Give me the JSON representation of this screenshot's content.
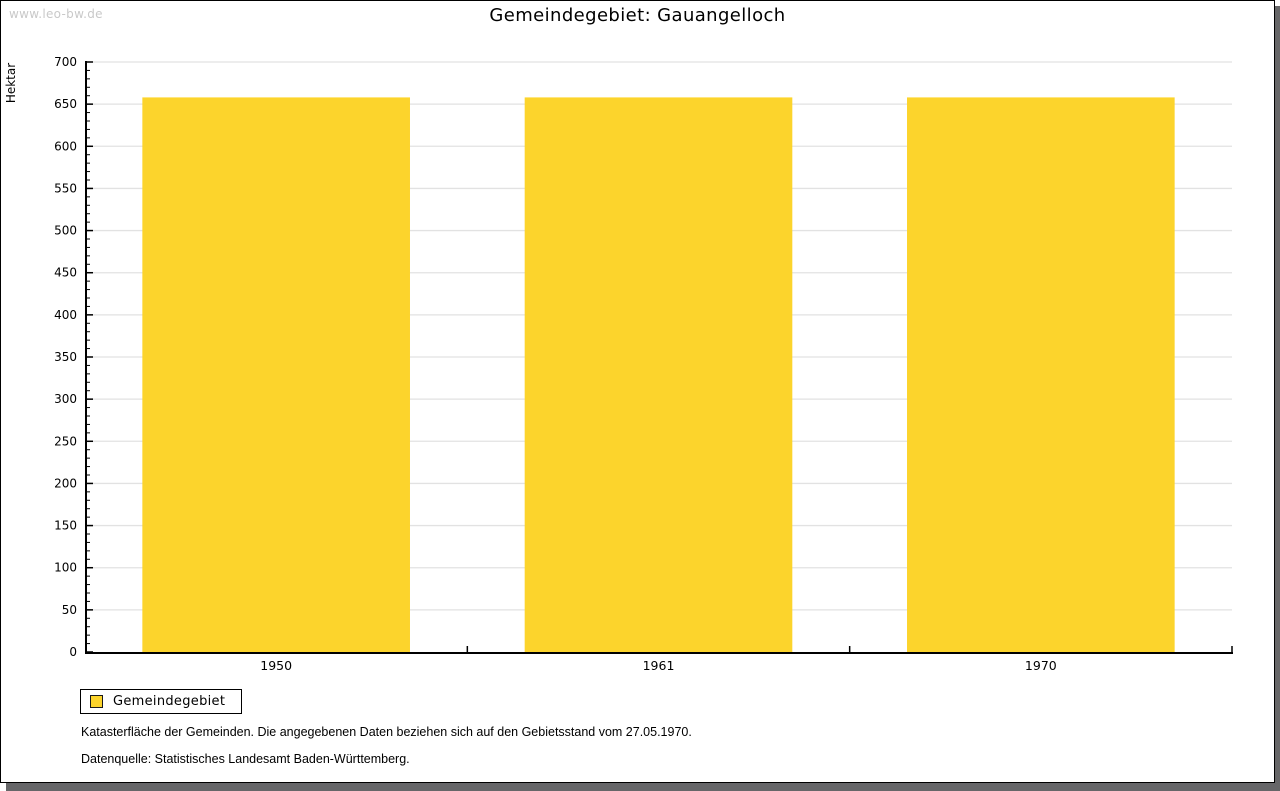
{
  "watermark": {
    "text": "www.leo-bw.de"
  },
  "header": {
    "title": "Gemeindegebiet: Gauangelloch"
  },
  "chart_data": {
    "type": "bar",
    "title": "Gemeindegebiet: Gauangelloch",
    "categories": [
      "1950",
      "1961",
      "1970"
    ],
    "series": [
      {
        "name": "Gemeindegebiet",
        "values": [
          658,
          658,
          658
        ]
      }
    ],
    "xlabel": "",
    "ylabel": "Hektar",
    "ylim": [
      0,
      700
    ],
    "y_ticks": [
      0,
      50,
      100,
      150,
      200,
      250,
      300,
      350,
      400,
      450,
      500,
      550,
      600,
      650,
      700
    ],
    "y_minor_step": 10,
    "grid": true,
    "legend_position": "bottom-left",
    "bar_color": "#FCD42C",
    "grid_color": "#E2E2E2",
    "axis_color": "#000000"
  },
  "legend": {
    "items": [
      {
        "label": "Gemeindegebiet",
        "color": "#FCD42C"
      }
    ]
  },
  "footnotes": {
    "line1": "Katasterfläche der Gemeinden. Die angegebenen Daten beziehen sich auf den Gebietsstand vom 27.05.1970.",
    "line2": "Datenquelle: Statistisches Landesamt Baden-Württemberg."
  }
}
